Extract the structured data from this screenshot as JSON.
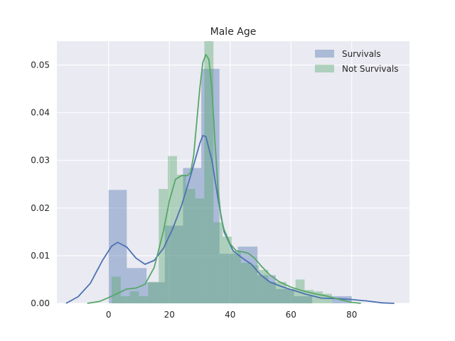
{
  "chart_data": {
    "type": "histogram",
    "title": "Male Age",
    "xlabel": "",
    "ylabel": "",
    "xlim": [
      -17,
      99
    ],
    "ylim": [
      0,
      0.055
    ],
    "xticks": [
      0,
      20,
      40,
      60,
      80
    ],
    "yticks": [
      0.0,
      0.01,
      0.02,
      0.03,
      0.04,
      0.05
    ],
    "ytick_labels": [
      "0.00",
      "0.01",
      "0.02",
      "0.03",
      "0.04",
      "0.05"
    ],
    "grid": true,
    "legend_position": "top-right",
    "series": [
      {
        "name": "Survivals",
        "color": "#4c72b0",
        "bins": [
          {
            "x0": 0,
            "x1": 6,
            "y": 0.0238
          },
          {
            "x0": 6,
            "x1": 12.5,
            "y": 0.0074
          },
          {
            "x0": 12.5,
            "x1": 18.5,
            "y": 0.0044
          },
          {
            "x0": 18.5,
            "x1": 24.5,
            "y": 0.0163
          },
          {
            "x0": 24.5,
            "x1": 30.5,
            "y": 0.0284
          },
          {
            "x0": 30.5,
            "x1": 36.5,
            "y": 0.0492
          },
          {
            "x0": 36.5,
            "x1": 42.5,
            "y": 0.0104
          },
          {
            "x0": 42.5,
            "x1": 49,
            "y": 0.0119
          },
          {
            "x0": 49,
            "x1": 55,
            "y": 0.0059
          },
          {
            "x0": 55,
            "x1": 61,
            "y": 0.003
          },
          {
            "x0": 61,
            "x1": 67,
            "y": 0.0015
          },
          {
            "x0": 67,
            "x1": 73.5,
            "y": 0.0
          },
          {
            "x0": 73.5,
            "x1": 80,
            "y": 0.0015
          }
        ],
        "kde": [
          [
            -14,
            0.0
          ],
          [
            -10,
            0.0014
          ],
          [
            -6,
            0.0042
          ],
          [
            -2,
            0.009
          ],
          [
            1,
            0.012
          ],
          [
            3,
            0.0128
          ],
          [
            6,
            0.0118
          ],
          [
            9,
            0.0095
          ],
          [
            12,
            0.0082
          ],
          [
            15,
            0.009
          ],
          [
            18,
            0.0115
          ],
          [
            21,
            0.0155
          ],
          [
            24,
            0.0205
          ],
          [
            27,
            0.0268
          ],
          [
            30,
            0.0335
          ],
          [
            31,
            0.0352
          ],
          [
            32,
            0.035
          ],
          [
            34,
            0.03
          ],
          [
            36,
            0.022
          ],
          [
            38,
            0.015
          ],
          [
            41,
            0.011
          ],
          [
            44,
            0.0095
          ],
          [
            47,
            0.0082
          ],
          [
            50,
            0.006
          ],
          [
            53,
            0.0045
          ],
          [
            57,
            0.0035
          ],
          [
            61,
            0.0027
          ],
          [
            65,
            0.0019
          ],
          [
            70,
            0.0011
          ],
          [
            75,
            0.001
          ],
          [
            80,
            0.0008
          ],
          [
            85,
            0.0005
          ],
          [
            90,
            0.0001
          ],
          [
            94,
            0.0
          ]
        ]
      },
      {
        "name": "Not Survivals",
        "color": "#55a868",
        "bins": [
          {
            "x0": 1,
            "x1": 4,
            "y": 0.0056
          },
          {
            "x0": 4,
            "x1": 7,
            "y": 0.0015
          },
          {
            "x0": 7,
            "x1": 10,
            "y": 0.0025
          },
          {
            "x0": 10,
            "x1": 13,
            "y": 0.0015
          },
          {
            "x0": 13,
            "x1": 16.5,
            "y": 0.0045
          },
          {
            "x0": 16.5,
            "x1": 19.5,
            "y": 0.024
          },
          {
            "x0": 19.5,
            "x1": 22.5,
            "y": 0.0309
          },
          {
            "x0": 22.5,
            "x1": 25.5,
            "y": 0.027
          },
          {
            "x0": 25.5,
            "x1": 28.5,
            "y": 0.024
          },
          {
            "x0": 28.5,
            "x1": 31.5,
            "y": 0.022
          },
          {
            "x0": 31.5,
            "x1": 34.5,
            "y": 0.055
          },
          {
            "x0": 34.5,
            "x1": 37.5,
            "y": 0.017
          },
          {
            "x0": 37.5,
            "x1": 40.5,
            "y": 0.014
          },
          {
            "x0": 40.5,
            "x1": 43.5,
            "y": 0.011
          },
          {
            "x0": 43.5,
            "x1": 46.5,
            "y": 0.0085
          },
          {
            "x0": 46.5,
            "x1": 49.5,
            "y": 0.008
          },
          {
            "x0": 49.5,
            "x1": 52.5,
            "y": 0.007
          },
          {
            "x0": 52.5,
            "x1": 55.5,
            "y": 0.0045
          },
          {
            "x0": 55.5,
            "x1": 58.5,
            "y": 0.0045
          },
          {
            "x0": 58.5,
            "x1": 61.5,
            "y": 0.003
          },
          {
            "x0": 61.5,
            "x1": 64.5,
            "y": 0.005
          },
          {
            "x0": 64.5,
            "x1": 67.5,
            "y": 0.0028
          },
          {
            "x0": 67.5,
            "x1": 70.5,
            "y": 0.0025
          },
          {
            "x0": 70.5,
            "x1": 73.5,
            "y": 0.002
          }
        ],
        "kde": [
          [
            -7,
            0.0
          ],
          [
            -3,
            0.0004
          ],
          [
            0,
            0.0012
          ],
          [
            3,
            0.0021
          ],
          [
            6,
            0.003
          ],
          [
            9,
            0.0032
          ],
          [
            12,
            0.004
          ],
          [
            15,
            0.0075
          ],
          [
            18,
            0.015
          ],
          [
            20,
            0.0215
          ],
          [
            22,
            0.026
          ],
          [
            24,
            0.0268
          ],
          [
            26,
            0.0268
          ],
          [
            27,
            0.0275
          ],
          [
            28,
            0.031
          ],
          [
            29,
            0.038
          ],
          [
            30,
            0.045
          ],
          [
            31,
            0.0505
          ],
          [
            32,
            0.0522
          ],
          [
            33,
            0.0512
          ],
          [
            34,
            0.045
          ],
          [
            35,
            0.034
          ],
          [
            36,
            0.024
          ],
          [
            37,
            0.018
          ],
          [
            38,
            0.0155
          ],
          [
            40,
            0.0125
          ],
          [
            42,
            0.011
          ],
          [
            44,
            0.0108
          ],
          [
            46,
            0.0105
          ],
          [
            48,
            0.0095
          ],
          [
            50,
            0.008
          ],
          [
            53,
            0.006
          ],
          [
            56,
            0.0046
          ],
          [
            60,
            0.0034
          ],
          [
            64,
            0.0026
          ],
          [
            68,
            0.002
          ],
          [
            72,
            0.0015
          ],
          [
            76,
            0.0008
          ],
          [
            80,
            0.0002
          ],
          [
            83,
            0.0
          ]
        ]
      }
    ]
  }
}
